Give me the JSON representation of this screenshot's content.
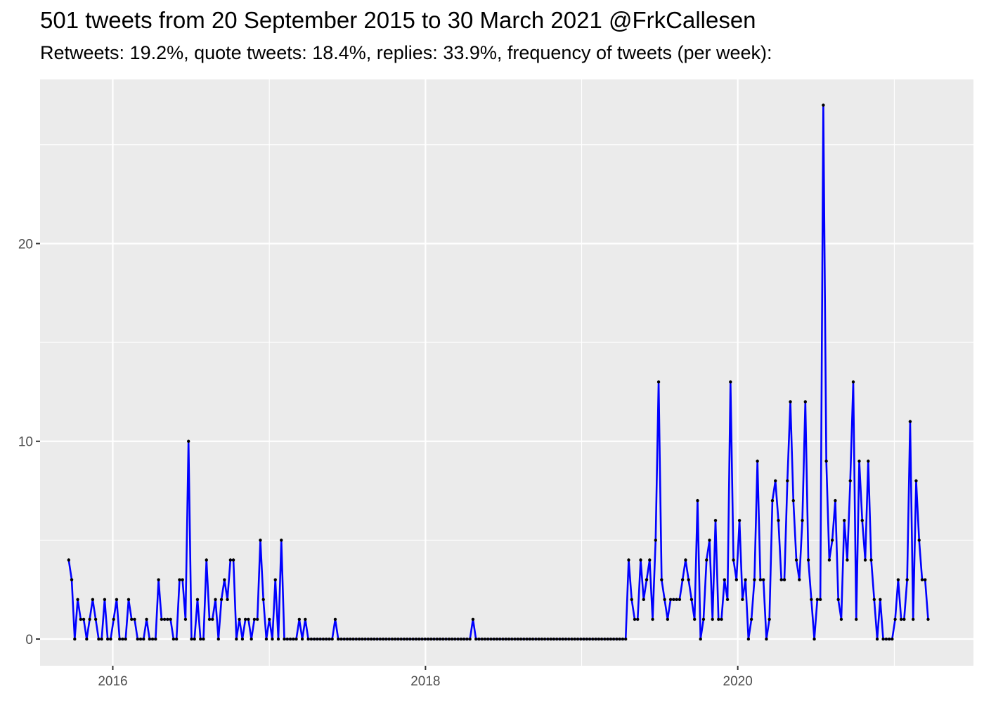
{
  "title": "501 tweets from 20 September 2015 to 30 March 2021 @FrkCallesen",
  "subtitle": "Retweets: 19.2%, quote tweets: 18.4%, replies: 33.9%, frequency of tweets (per week):",
  "colors": {
    "panel": "#ebebeb",
    "grid": "#ffffff",
    "line": "#0000ff",
    "point": "#000000",
    "tick": "#4d4d4d"
  },
  "chart_data": {
    "type": "line",
    "title": "501 tweets from 20 September 2015 to 30 March 2021 @FrkCallesen",
    "subtitle": "Retweets: 19.2%, quote tweets: 18.4%, replies: 33.9%, frequency of tweets (per week):",
    "xlabel": "",
    "ylabel": "",
    "x_range": [
      "2015-07-15",
      "2021-07-05"
    ],
    "ylim": [
      -1.35,
      28.3
    ],
    "x_ticks": [
      {
        "date": "2016-01-01",
        "label": "2016"
      },
      {
        "date": "2018-01-01",
        "label": "2018"
      },
      {
        "date": "2020-01-01",
        "label": "2020"
      }
    ],
    "x_minor_ticks": [
      "2017-01-01",
      "2019-01-01",
      "2021-01-01"
    ],
    "y_ticks": [
      0,
      10,
      20
    ],
    "y_minor_ticks": [
      5,
      15,
      25
    ],
    "grid": true,
    "series": [
      {
        "start_date": "2015-09-20",
        "interval_days": 7,
        "values": [
          4,
          3,
          0,
          2,
          1,
          1,
          0,
          1,
          2,
          1,
          0,
          0,
          2,
          0,
          0,
          1,
          2,
          0,
          0,
          0,
          2,
          1,
          1,
          0,
          0,
          0,
          1,
          0,
          0,
          0,
          3,
          1,
          1,
          1,
          1,
          0,
          0,
          3,
          3,
          1,
          10,
          0,
          0,
          2,
          0,
          0,
          4,
          1,
          1,
          2,
          0,
          2,
          3,
          2,
          4,
          4,
          0,
          1,
          0,
          1,
          1,
          0,
          1,
          1,
          5,
          2,
          0,
          1,
          0,
          3,
          0,
          5,
          0,
          0,
          0,
          0,
          0,
          1,
          0,
          1,
          0,
          0,
          0,
          0,
          0,
          0,
          0,
          0,
          0,
          1,
          0,
          0,
          0,
          0,
          0,
          0,
          0,
          0,
          0,
          0,
          0,
          0,
          0,
          0,
          0,
          0,
          0,
          0,
          0,
          0,
          0,
          0,
          0,
          0,
          0,
          0,
          0,
          0,
          0,
          0,
          0,
          0,
          0,
          0,
          0,
          0,
          0,
          0,
          0,
          0,
          0,
          0,
          0,
          0,
          0,
          1,
          0,
          0,
          0,
          0,
          0,
          0,
          0,
          0,
          0,
          0,
          0,
          0,
          0,
          0,
          0,
          0,
          0,
          0,
          0,
          0,
          0,
          0,
          0,
          0,
          0,
          0,
          0,
          0,
          0,
          0,
          0,
          0,
          0,
          0,
          0,
          0,
          0,
          0,
          0,
          0,
          0,
          0,
          0,
          0,
          0,
          0,
          0,
          0,
          0,
          0,
          0,
          4,
          2,
          1,
          1,
          4,
          2,
          3,
          4,
          1,
          5,
          13,
          3,
          2,
          1,
          2,
          2,
          2,
          2,
          3,
          4,
          3,
          2,
          1,
          7,
          0,
          1,
          4,
          5,
          1,
          6,
          1,
          1,
          3,
          2,
          13,
          4,
          3,
          6,
          2,
          3,
          0,
          1,
          3,
          9,
          3,
          3,
          0,
          1,
          7,
          8,
          6,
          3,
          3,
          8,
          12,
          7,
          4,
          3,
          6,
          12,
          4,
          2,
          0,
          2,
          2,
          27,
          9,
          4,
          5,
          7,
          2,
          1,
          6,
          4,
          8,
          13,
          1,
          9,
          6,
          4,
          9,
          4,
          2,
          0,
          2,
          0,
          0,
          0,
          0,
          1,
          3,
          1,
          1,
          3,
          11,
          1,
          8,
          5,
          3,
          3,
          1
        ]
      }
    ]
  }
}
